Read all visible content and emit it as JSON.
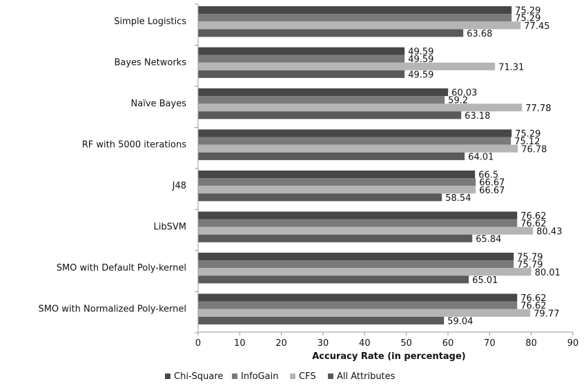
{
  "chart_data": {
    "type": "bar",
    "orientation": "horizontal",
    "title": "",
    "xlabel": "Accuracy Rate (in percentage)",
    "ylabel": "",
    "xlim": [
      0,
      90
    ],
    "xticks": [
      0,
      10,
      20,
      30,
      40,
      50,
      60,
      70,
      80,
      90
    ],
    "grid": false,
    "legend_position": "bottom",
    "categories": [
      "Simple Logistics",
      "Bayes Networks",
      "Naïve Bayes",
      "RF with 5000 iterations",
      "J48",
      "LibSVM",
      "SMO with Default Poly-kernel",
      "SMO with Normalized Poly-kernel"
    ],
    "series": [
      {
        "name": "Chi-Square",
        "color": "#474747",
        "values": [
          75.29,
          49.59,
          60.03,
          75.29,
          66.5,
          76.62,
          75.79,
          76.62
        ]
      },
      {
        "name": "InfoGain",
        "color": "#7a7a7a",
        "values": [
          75.29,
          49.59,
          59.2,
          75.12,
          66.67,
          76.62,
          75.79,
          76.62
        ]
      },
      {
        "name": "CFS",
        "color": "#b5b5b5",
        "values": [
          77.45,
          71.31,
          77.78,
          76.78,
          66.67,
          80.43,
          80.01,
          79.77
        ]
      },
      {
        "name": "All Attributes",
        "color": "#5a5a5a",
        "values": [
          63.68,
          49.59,
          63.18,
          64.01,
          58.54,
          65.84,
          65.01,
          59.04
        ]
      }
    ]
  }
}
